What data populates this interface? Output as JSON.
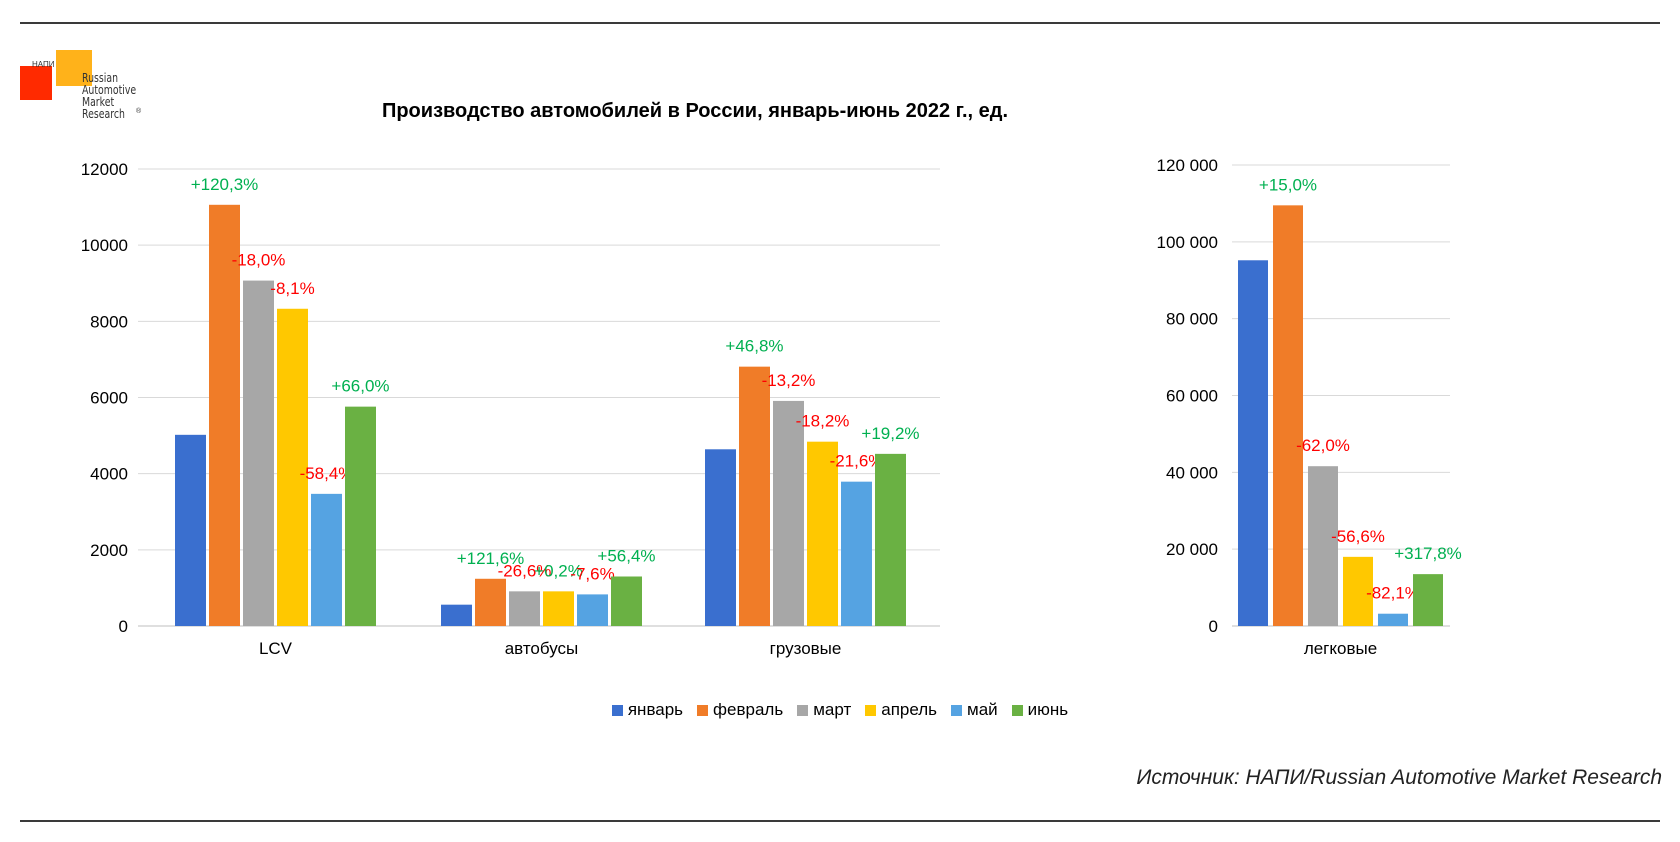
{
  "logo": {
    "abbr": "НАПИ",
    "line1": "Russian",
    "line2": "Automotive",
    "line3": "Market",
    "line4": "Research",
    "reg": "®"
  },
  "source": "Источник: НАПИ/Russian Automotive Market Research",
  "colors": {
    "январь": "#3a6fcf",
    "февраль": "#f07c28",
    "март": "#a7a7a7",
    "апрель": "#ffc800",
    "май": "#55a3e2",
    "июнь": "#6ab143",
    "positive_label": "#00b050",
    "negative_label": "#ff0000",
    "gridline": "#d9d9d9"
  },
  "chart_data": [
    {
      "type": "bar",
      "title": "Производство автомобилей в России, январь-июнь 2022 г., ед.",
      "categories": [
        "LCV",
        "автобусы",
        "грузовые"
      ],
      "ylim": [
        0,
        12000
      ],
      "yticks": [
        "0",
        "2000",
        "4000",
        "6000",
        "8000",
        "10000",
        "12000"
      ],
      "grid": true,
      "legend_position": "bottom",
      "series": [
        {
          "name": "январь",
          "values": [
            5020,
            560,
            4640
          ],
          "labels": [
            "",
            "",
            ""
          ]
        },
        {
          "name": "февраль",
          "values": [
            11060,
            1240,
            6810
          ],
          "labels": [
            "+120,3%",
            "+121,6%",
            "+46,8%"
          ]
        },
        {
          "name": "март",
          "values": [
            9070,
            910,
            5910
          ],
          "labels": [
            "-18,0%",
            "-26,6%",
            "-13,2%"
          ]
        },
        {
          "name": "апрель",
          "values": [
            8330,
            910,
            4840
          ],
          "labels": [
            "-8,1%",
            "+0,2%",
            "-18,2%"
          ]
        },
        {
          "name": "май",
          "values": [
            3470,
            830,
            3790
          ],
          "labels": [
            "-58,4%",
            "-7,6%",
            "-21,6%"
          ]
        },
        {
          "name": "июнь",
          "values": [
            5760,
            1300,
            4520
          ],
          "labels": [
            "+66,0%",
            "+56,4%",
            "+19,2%"
          ]
        }
      ]
    },
    {
      "type": "bar",
      "categories": [
        "легковые"
      ],
      "ylim": [
        0,
        120000
      ],
      "yticks": [
        "0",
        "20 000",
        "40 000",
        "60 000",
        "80 000",
        "100 000",
        "120 000"
      ],
      "grid": true,
      "series": [
        {
          "name": "январь",
          "values": [
            95200
          ],
          "labels": [
            ""
          ]
        },
        {
          "name": "февраль",
          "values": [
            109500
          ],
          "labels": [
            "+15,0%"
          ]
        },
        {
          "name": "март",
          "values": [
            41600
          ],
          "labels": [
            "-62,0%"
          ]
        },
        {
          "name": "апрель",
          "values": [
            18000
          ],
          "labels": [
            "-56,6%"
          ]
        },
        {
          "name": "май",
          "values": [
            3200
          ],
          "labels": [
            "-82,1%"
          ]
        },
        {
          "name": "июнь",
          "values": [
            13500
          ],
          "labels": [
            "+317,8%"
          ]
        }
      ]
    }
  ]
}
